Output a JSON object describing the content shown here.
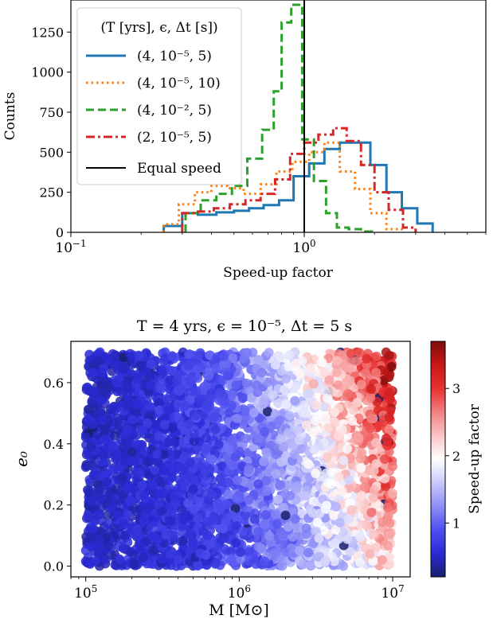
{
  "chart_data": [
    {
      "type": "histogram",
      "xlabel": "Speed-up factor",
      "ylabel": "Counts",
      "xscale": "log",
      "xlim": [
        0.1,
        6.0
      ],
      "ylim": [
        0,
        1450
      ],
      "xticks": [
        {
          "v": 0.1,
          "base": "10",
          "exp": "−1"
        },
        {
          "v": 1.0,
          "base": "10",
          "exp": "0"
        }
      ],
      "yticks": [
        {
          "v": 0,
          "label": "0"
        },
        {
          "v": 250,
          "label": "250"
        },
        {
          "v": 500,
          "label": "500"
        },
        {
          "v": 750,
          "label": "750"
        },
        {
          "v": 1000,
          "label": "1000"
        },
        {
          "v": 1250,
          "label": "1250"
        }
      ],
      "legend": {
        "title": "(T [yrs], ϵ, Δt [s])",
        "placement": "upper-left",
        "entries": [
          "(4, 10⁻⁵, 5)",
          "(4, 10⁻⁵, 10)",
          "(4, 10⁻², 5)",
          "(2, 10⁻⁵, 5)",
          "Equal speed"
        ]
      },
      "series": [
        {
          "name": "(4, 10⁻⁵, 5)",
          "color": "#1f77b4",
          "dash": "solid",
          "edges": [
            0.25,
            0.3,
            0.35,
            0.42,
            0.5,
            0.58,
            0.67,
            0.78,
            0.9,
            1.05,
            1.22,
            1.42,
            1.65,
            1.92,
            2.25,
            2.62,
            3.05,
            3.55
          ],
          "counts": [
            40,
            120,
            110,
            125,
            135,
            150,
            170,
            200,
            350,
            430,
            520,
            560,
            560,
            420,
            250,
            150,
            55
          ]
        },
        {
          "name": "(4, 10⁻⁵, 10)",
          "color": "#ff7f0e",
          "dash": "dotted",
          "edges": [
            0.25,
            0.29,
            0.34,
            0.4,
            0.47,
            0.55,
            0.65,
            0.76,
            0.89,
            1.05,
            1.22,
            1.42,
            1.65,
            1.92,
            2.25,
            2.62
          ],
          "counts": [
            50,
            175,
            250,
            290,
            275,
            240,
            300,
            380,
            440,
            500,
            560,
            380,
            270,
            120,
            20
          ]
        },
        {
          "name": "(4, 10⁻², 5)",
          "color": "#2ca02c",
          "dash": "dashed",
          "edges": [
            0.31,
            0.36,
            0.42,
            0.49,
            0.57,
            0.66,
            0.74,
            0.8,
            0.88,
            0.98,
            1.1,
            1.24,
            1.38,
            1.55,
            1.75,
            1.95
          ],
          "counts": [
            120,
            200,
            240,
            290,
            460,
            640,
            880,
            1310,
            1420,
            580,
            320,
            120,
            30,
            20,
            5
          ]
        },
        {
          "name": "(2, 10⁻⁵, 5)",
          "color": "#d62728",
          "dash": "dashdot",
          "edges": [
            0.3,
            0.35,
            0.41,
            0.48,
            0.56,
            0.65,
            0.75,
            0.87,
            1.0,
            1.15,
            1.33,
            1.52,
            1.75,
            2.0,
            2.3,
            2.65,
            3.0
          ],
          "counts": [
            120,
            130,
            150,
            175,
            200,
            240,
            330,
            490,
            560,
            610,
            650,
            570,
            420,
            250,
            140,
            30
          ]
        },
        {
          "name": "Equal speed",
          "color": "#000000",
          "dash": "solid",
          "type": "vline",
          "x": 1.0
        }
      ]
    },
    {
      "type": "scatter",
      "title": "T = 4 yrs, ϵ = 10⁻⁵, Δt = 5 s",
      "xlabel": "M [M⊙]",
      "ylabel": "e₀",
      "xscale": "log",
      "xlim": [
        80000,
        13000000
      ],
      "ylim": [
        -0.035,
        0.735
      ],
      "xticks": [
        {
          "v": 100000,
          "base": "10",
          "exp": "5"
        },
        {
          "v": 1000000,
          "base": "10",
          "exp": "6"
        },
        {
          "v": 10000000,
          "base": "10",
          "exp": "7"
        }
      ],
      "yticks": [
        {
          "v": 0.0,
          "label": "0.0"
        },
        {
          "v": 0.2,
          "label": "0.2"
        },
        {
          "v": 0.4,
          "label": "0.4"
        },
        {
          "v": 0.6,
          "label": "0.6"
        }
      ],
      "n_points": 3800,
      "x_range": [
        100000,
        10000000
      ],
      "y_range": [
        0.0,
        0.7
      ],
      "colormap": "seismic-like (dark blue → white → dark red)",
      "color_variable": "Speed-up factor",
      "colorbar": {
        "label": "Speed-up factor",
        "range": [
          0.2,
          3.7
        ],
        "ticks": [
          {
            "v": 1,
            "label": "1"
          },
          {
            "v": 2,
            "label": "2"
          },
          {
            "v": 3,
            "label": "3"
          }
        ],
        "colors": [
          "#18206b",
          "#2a2ad6",
          "#4f50f0",
          "#8e8ff7",
          "#c9c9fb",
          "#ffffff",
          "#fbc4c4",
          "#f38080",
          "#e83030",
          "#c81818",
          "#7f0a0a"
        ]
      }
    }
  ]
}
